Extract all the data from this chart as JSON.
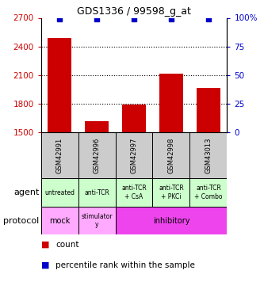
{
  "title": "GDS1336 / 99598_g_at",
  "samples": [
    "GSM42991",
    "GSM42996",
    "GSM42997",
    "GSM42998",
    "GSM43013"
  ],
  "counts": [
    2490,
    1620,
    1795,
    2115,
    1965
  ],
  "percentiles": [
    99,
    99,
    99,
    99,
    99
  ],
  "ymin": 1500,
  "ymax": 2700,
  "yticks": [
    1500,
    1800,
    2100,
    2400,
    2700
  ],
  "y2ticks": [
    0,
    25,
    50,
    75,
    100
  ],
  "bar_color": "#cc0000",
  "dot_color": "#0000cc",
  "agent_labels": [
    "untreated",
    "anti-TCR",
    "anti-TCR\n+ CsA",
    "anti-TCR\n+ PKCi",
    "anti-TCR\n+ Combo"
  ],
  "agent_bg": "#ccffcc",
  "sample_bg": "#cccccc",
  "protocol_bg_light": "#ffaaff",
  "protocol_bg_dark": "#ee44ee",
  "legend_count_color": "#cc0000",
  "legend_pct_color": "#0000cc"
}
